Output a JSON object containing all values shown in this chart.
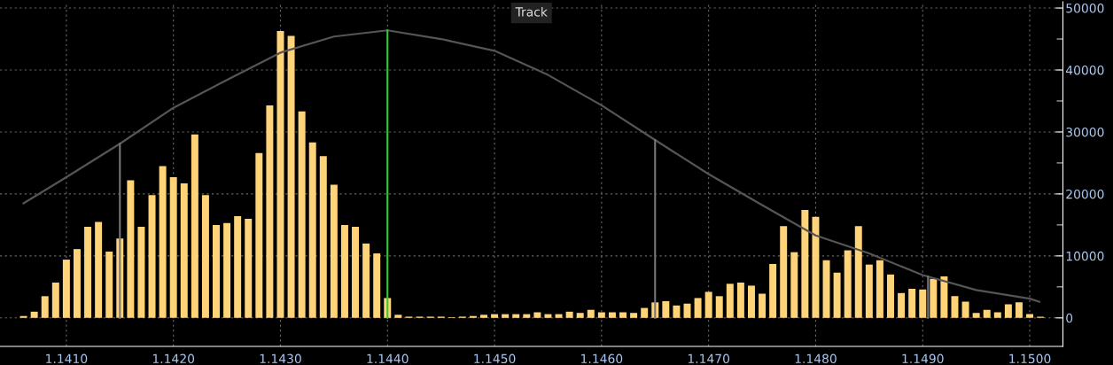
{
  "chart_data": {
    "type": "bar",
    "x": [
      1.1406,
      1.1407,
      1.1408,
      1.1409,
      1.141,
      1.1411,
      1.1412,
      1.1413,
      1.1414,
      1.1415,
      1.1416,
      1.1417,
      1.1418,
      1.1419,
      1.142,
      1.1421,
      1.1422,
      1.1423,
      1.1424,
      1.1425,
      1.1426,
      1.1427,
      1.1428,
      1.1429,
      1.143,
      1.1431,
      1.1432,
      1.1433,
      1.1434,
      1.1435,
      1.1436,
      1.1437,
      1.1438,
      1.1439,
      1.144,
      1.1441,
      1.1442,
      1.1443,
      1.1444,
      1.1445,
      1.1446,
      1.1447,
      1.1448,
      1.1449,
      1.145,
      1.1451,
      1.1452,
      1.1453,
      1.1454,
      1.1455,
      1.1456,
      1.1457,
      1.1458,
      1.1459,
      1.146,
      1.1461,
      1.1462,
      1.1463,
      1.1464,
      1.1465,
      1.1466,
      1.1467,
      1.1468,
      1.1469,
      1.147,
      1.1471,
      1.1472,
      1.1473,
      1.1474,
      1.1475,
      1.1476,
      1.1477,
      1.1478,
      1.1479,
      1.148,
      1.1481,
      1.1482,
      1.1483,
      1.1484,
      1.1485,
      1.1486,
      1.1487,
      1.1488,
      1.1489,
      1.149,
      1.1491,
      1.1492,
      1.1493,
      1.1494,
      1.1495,
      1.1496,
      1.1497,
      1.1498,
      1.1499,
      1.15,
      1.1501
    ],
    "series": [
      {
        "color": "#ffd479",
        "values": [
          300,
          1000,
          3500,
          5700,
          9400,
          11100,
          14700,
          15500,
          10700,
          12800,
          22200,
          14700,
          19800,
          24500,
          22700,
          21700,
          29600,
          19800,
          15000,
          15300,
          16400,
          16000,
          26600,
          34300,
          46300,
          45500,
          33300,
          28300,
          26100,
          21500,
          15000,
          14700,
          12000,
          10400,
          3200,
          500,
          200,
          200,
          200,
          200,
          100,
          200,
          300,
          500,
          600,
          600,
          600,
          600,
          900,
          600,
          600,
          1000,
          800,
          1300,
          900,
          900,
          900,
          800,
          1600,
          2500,
          2700,
          2000,
          2300,
          3200,
          4200,
          3500,
          5500,
          5700,
          5200,
          3900,
          8700,
          14800,
          10600,
          17400,
          16300,
          9300,
          7300,
          10900,
          14800,
          8600,
          9300,
          7000,
          4000,
          4700,
          4600,
          6300,
          6700,
          3500,
          2600,
          800,
          1300,
          900,
          2200,
          2500,
          600,
          200
        ]
      },
      {
        "type": "line",
        "color": "#555555",
        "x": [
          1.1406,
          1.141,
          1.1415,
          1.142,
          1.1425,
          1.143,
          1.1435,
          1.144,
          1.1445,
          1.145,
          1.1455,
          1.146,
          1.1465,
          1.147,
          1.1475,
          1.148,
          1.1485,
          1.149,
          1.1495,
          1.15,
          1.15009
        ],
        "values": [
          18500,
          22700,
          28100,
          33900,
          38400,
          42800,
          45400,
          46400,
          45000,
          43100,
          39200,
          34300,
          28700,
          23200,
          18200,
          13300,
          10400,
          6900,
          4500,
          3100,
          2600
        ]
      }
    ],
    "ref_lines": [
      {
        "axis": "x",
        "value": 1.1415,
        "color": "#777777"
      },
      {
        "axis": "x",
        "value": 1.144,
        "color": "#33cc33"
      },
      {
        "axis": "x",
        "value": 1.1465,
        "color": "#777777"
      },
      {
        "axis": "x",
        "value": 1.14905,
        "color": "#777777"
      }
    ],
    "annotations": [
      "Track"
    ],
    "xlim": [
      1.14038,
      1.15031
    ],
    "xticks": [
      {
        "value": 1.141,
        "label": "1.1410"
      },
      {
        "value": 1.142,
        "label": "1.1420"
      },
      {
        "value": 1.143,
        "label": "1.1430"
      },
      {
        "value": 1.144,
        "label": "1.1440"
      },
      {
        "value": 1.145,
        "label": "1.1450"
      },
      {
        "value": 1.146,
        "label": "1.1460"
      },
      {
        "value": 1.147,
        "label": "1.1470"
      },
      {
        "value": 1.148,
        "label": "1.1480"
      },
      {
        "value": 1.149,
        "label": "1.1490"
      },
      {
        "value": 1.15,
        "label": "1.1500"
      }
    ],
    "ylim": [
      -4600,
      51000
    ],
    "yticks": [
      0,
      {
        "value": 5000,
        "label": null
      },
      10000,
      {
        "value": 15000,
        "label": null
      },
      20000,
      {
        "value": 25000,
        "label": null
      },
      30000,
      {
        "value": 35000,
        "label": null
      },
      40000,
      {
        "value": 45000,
        "label": null
      },
      50000
    ],
    "grid": true
  }
}
